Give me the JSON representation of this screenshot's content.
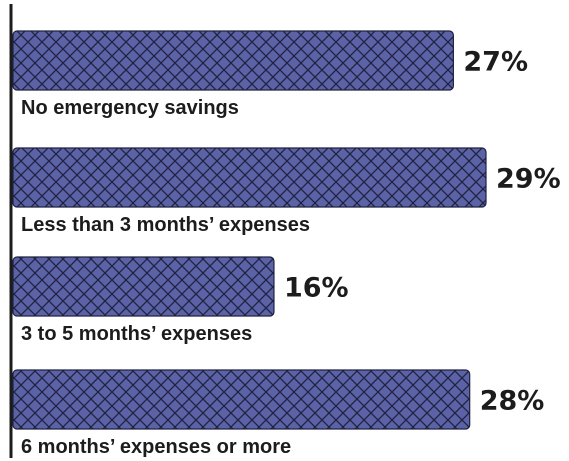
{
  "chart_data": {
    "type": "bar",
    "orientation": "horizontal",
    "categories": [
      "No emergency savings",
      "Less than 3 months’ expenses",
      "3 to 5 months’ expenses",
      "6 months’ expenses or more"
    ],
    "values": [
      27,
      29,
      16,
      28
    ],
    "value_labels": [
      "27%",
      "29%",
      "16%",
      "28%"
    ],
    "xlim": [
      0,
      29
    ],
    "grid": false,
    "legend": "none",
    "bar_color": "#5b63a6",
    "bar_pattern": "crosshatch",
    "axis_color": "#1c1c1c"
  }
}
